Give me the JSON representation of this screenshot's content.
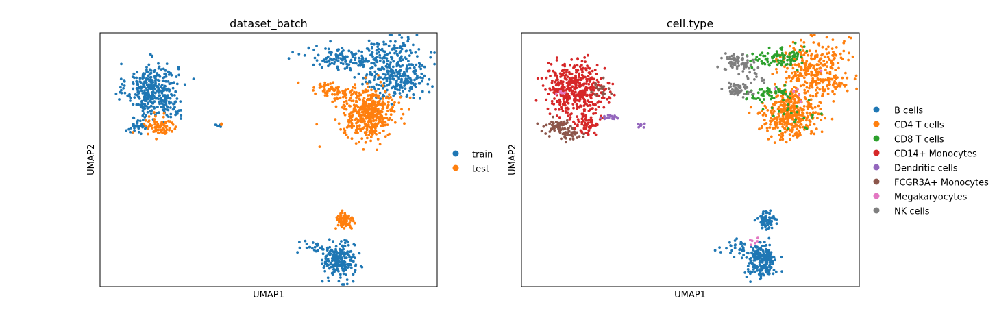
{
  "chart_data": [
    {
      "type": "scatter",
      "title": "dataset_batch",
      "xlabel": "UMAP1",
      "ylabel": "UMAP2",
      "xlim": [
        0,
        100
      ],
      "ylim": [
        0,
        100
      ],
      "grid": false,
      "legend": "right",
      "series": [
        {
          "name": "train",
          "color": "#1f77b4",
          "clusters": [
            {
              "cx": 15.5,
              "cy": 78,
              "sx": 3.8,
              "sy": 5,
              "n": 340
            },
            {
              "cx": 11,
              "cy": 63,
              "sx": 2,
              "sy": 1.3,
              "n": 35
            },
            {
              "cx": 19,
              "cy": 71,
              "sx": 4,
              "sy": 3,
              "n": 60
            },
            {
              "cx": 72,
              "cy": 90,
              "sx": 5.5,
              "sy": 2.2,
              "n": 130
            },
            {
              "cx": 87,
              "cy": 86,
              "sx": 5,
              "sy": 6,
              "n": 330
            },
            {
              "cx": 92,
              "cy": 80,
              "sx": 2,
              "sy": 1.5,
              "n": 30
            },
            {
              "cx": 71,
              "cy": 10,
              "sx": 2.3,
              "sy": 3.5,
              "n": 220
            },
            {
              "cx": 64,
              "cy": 15.5,
              "sx": 2.2,
              "sy": 1.2,
              "n": 30
            },
            {
              "cx": 35,
              "cy": 63.5,
              "sx": 0.7,
              "sy": 0.4,
              "n": 7
            }
          ]
        },
        {
          "name": "test",
          "color": "#ff7f0e",
          "clusters": [
            {
              "cx": 80,
              "cy": 68,
              "sx": 3.8,
              "sy": 4.6,
              "n": 440
            },
            {
              "cx": 67,
              "cy": 78,
              "sx": 3,
              "sy": 1.5,
              "n": 40
            },
            {
              "cx": 72,
              "cy": 76,
              "sx": 3,
              "sy": 2,
              "n": 40
            },
            {
              "cx": 17.5,
              "cy": 63,
              "sx": 2.4,
              "sy": 2.2,
              "n": 80
            },
            {
              "cx": 72.5,
              "cy": 26,
              "sx": 1.3,
              "sy": 1.9,
              "n": 70
            },
            {
              "cx": 36,
              "cy": 63.5,
              "sx": 0.4,
              "sy": 0.4,
              "n": 3
            }
          ]
        }
      ]
    },
    {
      "type": "scatter",
      "title": "cell.type",
      "xlabel": "UMAP1",
      "ylabel": "UMAP2",
      "xlim": [
        0,
        100
      ],
      "ylim": [
        0,
        100
      ],
      "grid": false,
      "legend": "right",
      "series": [
        {
          "name": "B cells",
          "color": "#1f77b4",
          "clusters": [
            {
              "cx": 71,
              "cy": 10,
              "sx": 2.3,
              "sy": 3.5,
              "n": 220
            },
            {
              "cx": 64,
              "cy": 15.5,
              "sx": 2.2,
              "sy": 1.2,
              "n": 30
            },
            {
              "cx": 72.5,
              "cy": 26,
              "sx": 1.3,
              "sy": 1.9,
              "n": 70
            }
          ]
        },
        {
          "name": "CD4 T cells",
          "color": "#ff7f0e",
          "clusters": [
            {
              "cx": 80,
              "cy": 68,
              "sx": 3.8,
              "sy": 4.6,
              "n": 400
            },
            {
              "cx": 86,
              "cy": 86,
              "sx": 5,
              "sy": 6,
              "n": 300
            },
            {
              "cx": 92,
              "cy": 80,
              "sx": 2,
              "sy": 1.5,
              "n": 30
            }
          ]
        },
        {
          "name": "CD8 T cells",
          "color": "#2ca02c",
          "clusters": [
            {
              "cx": 76,
              "cy": 90,
              "sx": 4,
              "sy": 2,
              "n": 90
            },
            {
              "cx": 72,
              "cy": 76,
              "sx": 3,
              "sy": 1.5,
              "n": 55
            },
            {
              "cx": 80,
              "cy": 68,
              "sx": 4,
              "sy": 5,
              "n": 25
            }
          ]
        },
        {
          "name": "CD14+ Monocytes",
          "color": "#d62728",
          "clusters": [
            {
              "cx": 15.5,
              "cy": 78,
              "sx": 3.8,
              "sy": 5,
              "n": 400
            },
            {
              "cx": 19.5,
              "cy": 64,
              "sx": 2,
              "sy": 2,
              "n": 60
            },
            {
              "cx": 23,
              "cy": 77,
              "sx": 2,
              "sy": 4,
              "n": 40
            }
          ]
        },
        {
          "name": "Dendritic cells",
          "color": "#9467bd",
          "clusters": [
            {
              "cx": 26,
              "cy": 67,
              "sx": 1.1,
              "sy": 0.6,
              "n": 16
            },
            {
              "cx": 35.5,
              "cy": 63.5,
              "sx": 0.9,
              "sy": 0.4,
              "n": 10
            }
          ]
        },
        {
          "name": "FCGR3A+ Monocytes",
          "color": "#8c564b",
          "clusters": [
            {
              "cx": 11,
              "cy": 63,
              "sx": 2.2,
              "sy": 1.4,
              "n": 70
            },
            {
              "cx": 14.5,
              "cy": 60,
              "sx": 1.5,
              "sy": 1.2,
              "n": 30
            },
            {
              "cx": 23.5,
              "cy": 78.5,
              "sx": 1.3,
              "sy": 1.6,
              "n": 20
            }
          ]
        },
        {
          "name": "Megakaryocytes",
          "color": "#e377c2",
          "clusters": [
            {
              "cx": 11.5,
              "cy": 76,
              "sx": 0.8,
              "sy": 0.6,
              "n": 6
            },
            {
              "cx": 70,
              "cy": 18,
              "sx": 1.2,
              "sy": 1.2,
              "n": 6
            },
            {
              "cx": 82,
              "cy": 80,
              "sx": 3,
              "sy": 3,
              "n": 6
            }
          ]
        },
        {
          "name": "NK cells",
          "color": "#7f7f7f",
          "clusters": [
            {
              "cx": 64,
              "cy": 88.5,
              "sx": 2.2,
              "sy": 1.6,
              "n": 70
            },
            {
              "cx": 64,
              "cy": 78,
              "sx": 2.5,
              "sy": 1.3,
              "n": 50
            },
            {
              "cx": 69,
              "cy": 84,
              "sx": 2,
              "sy": 2,
              "n": 20
            }
          ]
        }
      ]
    }
  ]
}
